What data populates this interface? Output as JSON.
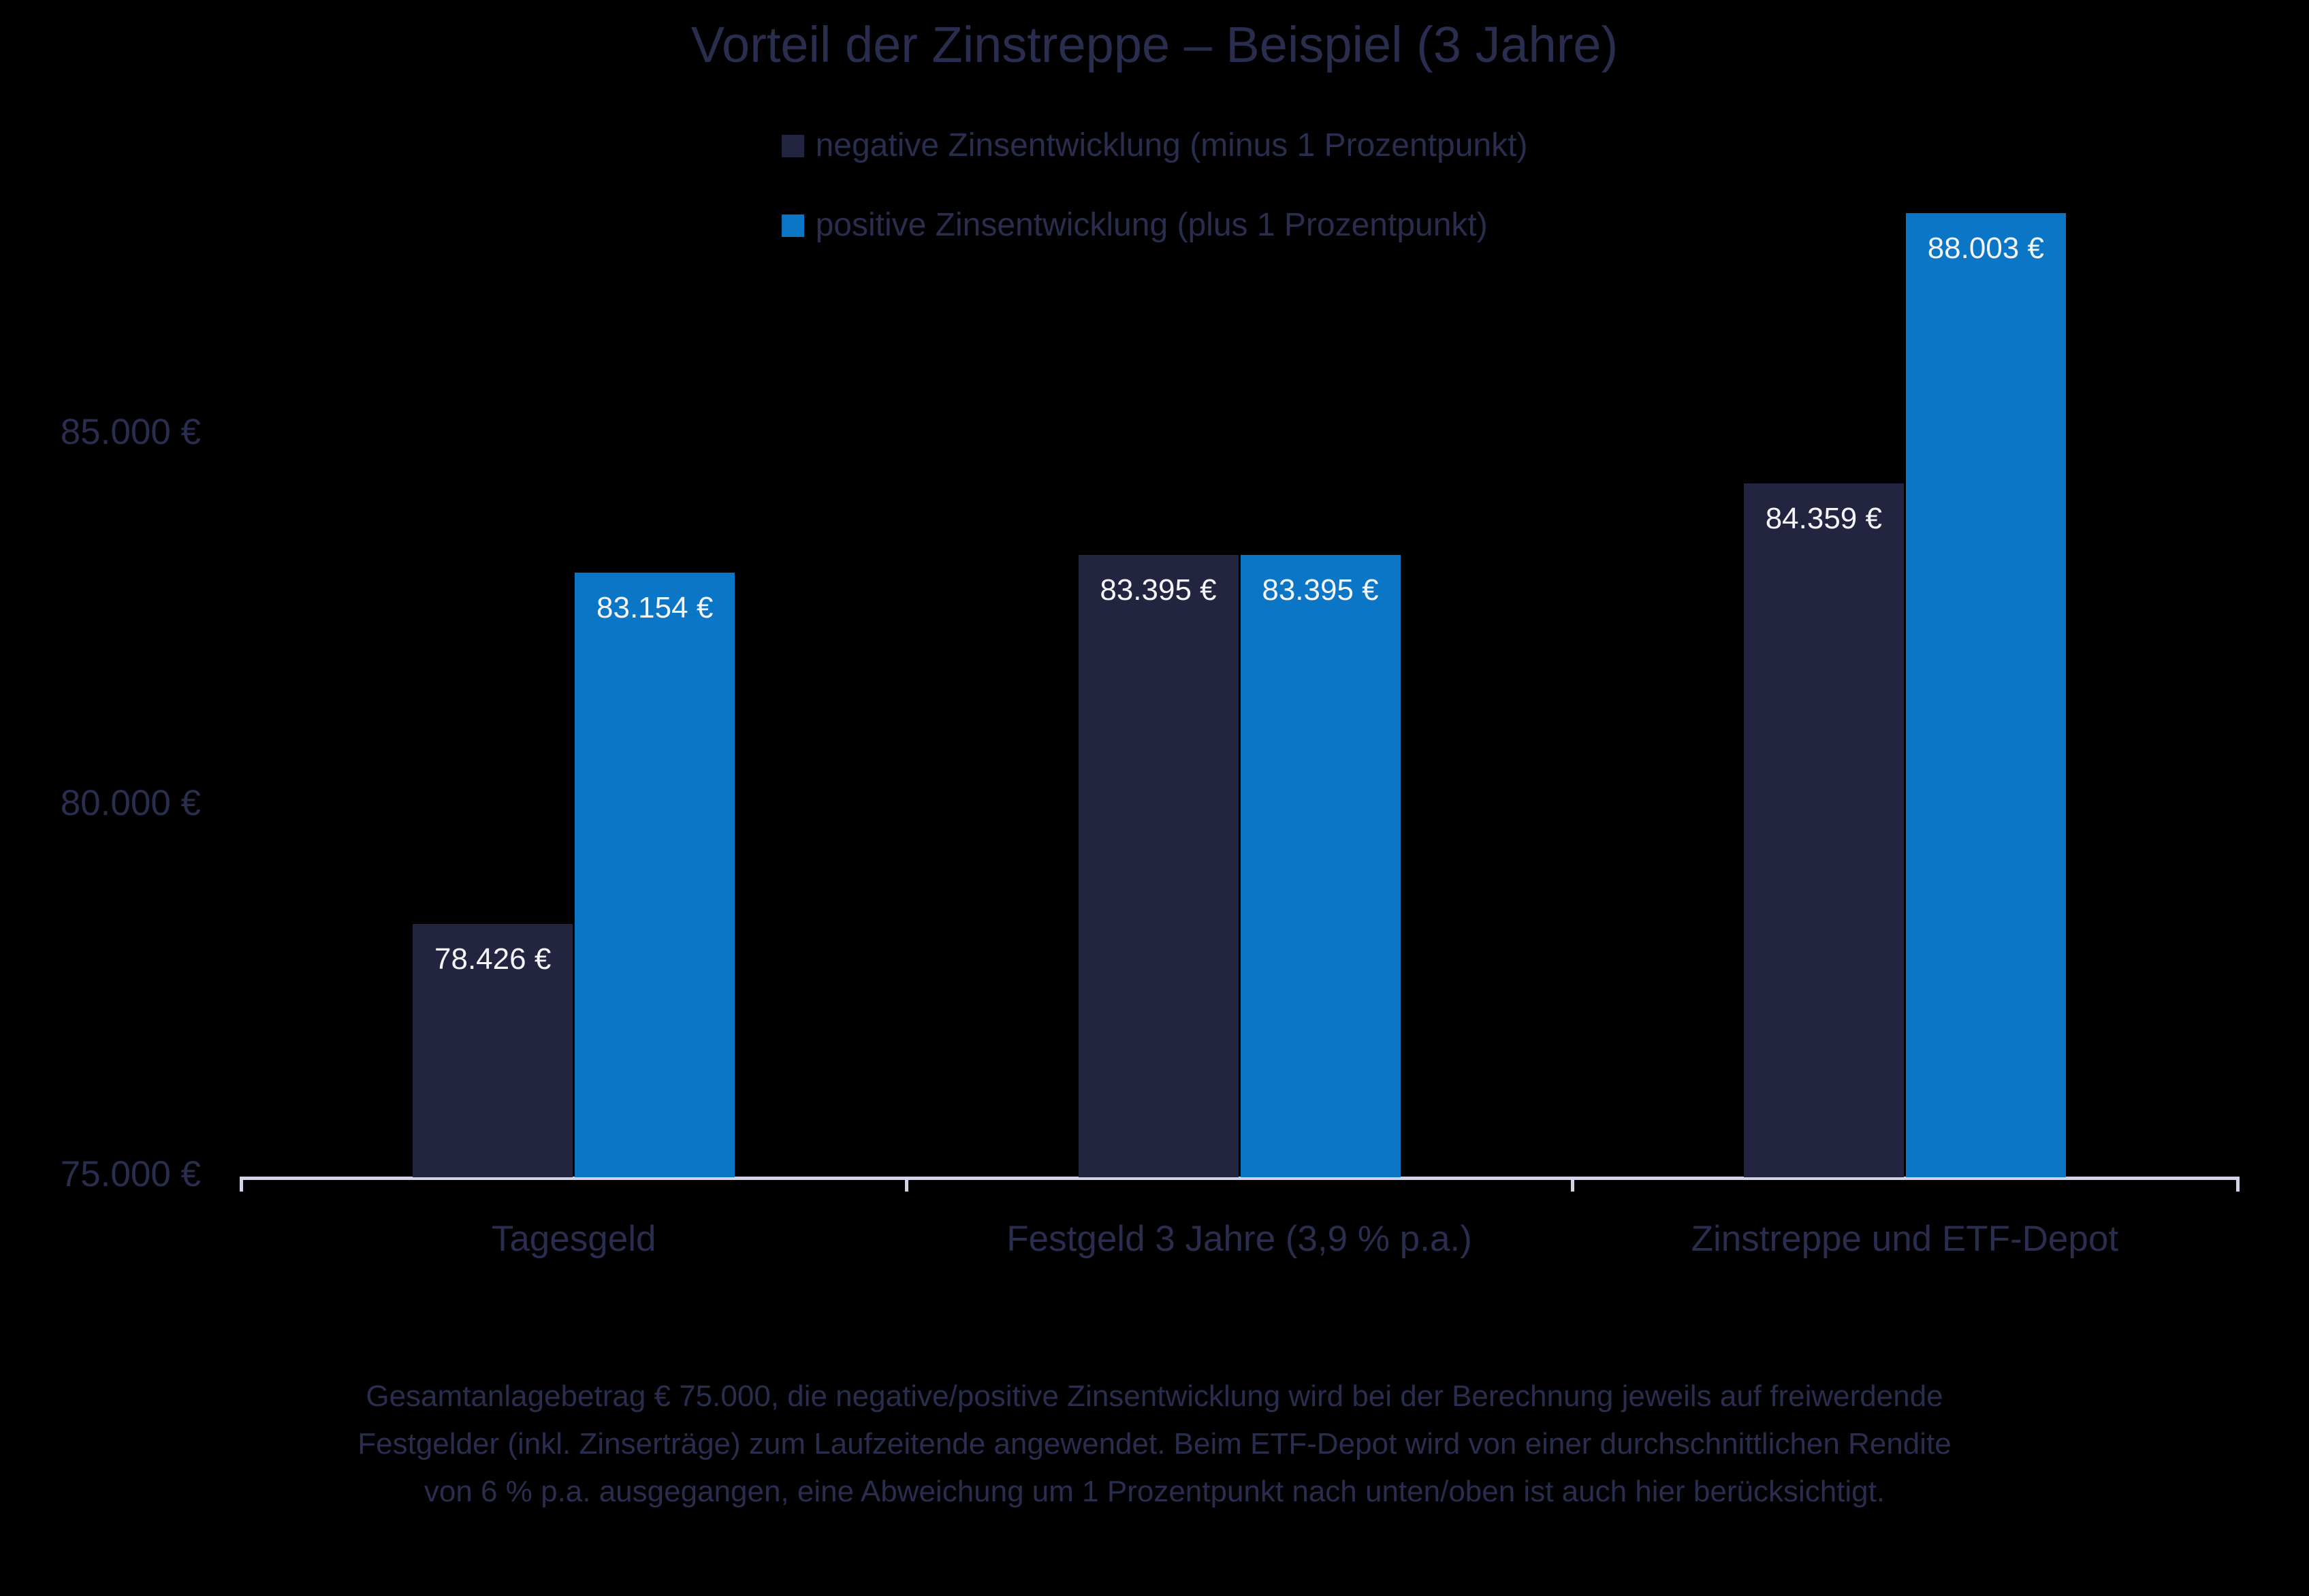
{
  "title": "Vorteil der Zinstreppe – Beispiel (3 Jahre)",
  "colors": {
    "background": "#000000",
    "text": "#292d4e",
    "negative_series": "#222440",
    "positive_series": "#0b75c6",
    "axis_line": "#d2d3e4",
    "value_label": "#f4f5f9"
  },
  "legend": {
    "items": [
      {
        "label": "negative Zinsentwicklung (minus 1 Prozentpunkt)",
        "color": "#222440"
      },
      {
        "label": "positive Zinsentwicklung (plus 1 Prozentpunkt)",
        "color": "#0b75c6"
      }
    ]
  },
  "chart_data": {
    "type": "bar",
    "title": "Vorteil der Zinstreppe – Beispiel (3 Jahre)",
    "categories": [
      "Tagesgeld",
      "Festgeld 3 Jahre (3,9 % p.a.)",
      "Zinstreppe und ETF-Depot"
    ],
    "series": [
      {
        "name": "negative Zinsentwicklung (minus 1 Prozentpunkt)",
        "color": "#222440",
        "values": [
          78426,
          83395,
          84359
        ],
        "labels": [
          "78.426 €",
          "83.395 €",
          "84.359 €"
        ]
      },
      {
        "name": "positive Zinsentwicklung (plus 1 Prozentpunkt)",
        "color": "#0b75c6",
        "values": [
          83154,
          83395,
          88003
        ],
        "labels": [
          "83.154 €",
          "83.395 €",
          "88.003 €"
        ]
      }
    ],
    "yticks": [
      {
        "value": 75000,
        "label": "75.000 €"
      },
      {
        "value": 80000,
        "label": "80.000 €"
      },
      {
        "value": 85000,
        "label": "85.000 €"
      }
    ],
    "ylim": [
      75000,
      88600
    ],
    "xlabel": "",
    "ylabel": "",
    "grid": false,
    "legend_position": "top-center",
    "value_label_position": "inside-top"
  },
  "footer": {
    "lines": [
      "Gesamtanlagebetrag € 75.000, die negative/positive Zinsentwicklung wird bei der Berechnung jeweils auf freiwerdende",
      "Festgelder (inkl. Zinserträge) zum Laufzeitende angewendet. Beim ETF-Depot wird von einer durchschnittlichen Rendite",
      "von 6 % p.a. ausgegangen, eine Abweichung um 1 Prozentpunkt nach unten/oben ist auch hier berücksichtigt."
    ]
  }
}
